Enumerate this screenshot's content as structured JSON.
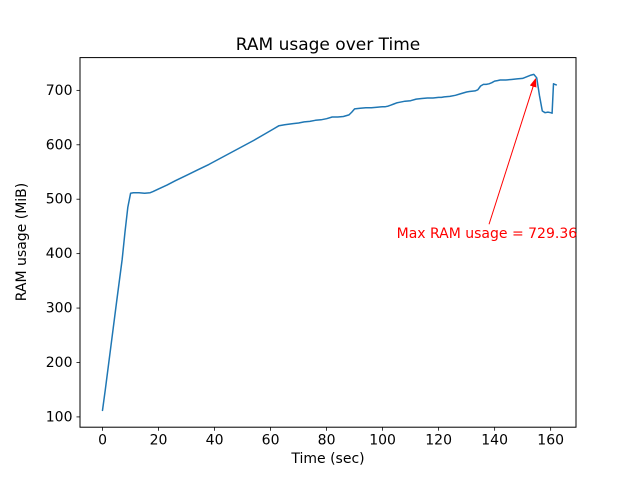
{
  "chart_data": {
    "type": "line",
    "title": "RAM usage over Time",
    "xlabel": "Time (sec)",
    "ylabel": "RAM usage (MiB)",
    "xlim": [
      -8.05,
      169.05
    ],
    "ylim": [
      81.1,
      760.2
    ],
    "xticks": [
      0,
      20,
      40,
      60,
      80,
      100,
      120,
      140,
      160
    ],
    "yticks": [
      100,
      200,
      300,
      400,
      500,
      600,
      700
    ],
    "grid": false,
    "legend": false,
    "line_color": "#1f77b4",
    "max_value": 729.36,
    "annotation": {
      "text": "Max RAM usage = 729.36",
      "color": "#ff0000",
      "point": [
        154,
        729.36
      ],
      "arrow_from": [
        138,
        454
      ],
      "arrow_to": [
        154.6,
        721
      ],
      "text_pos": [
        105,
        429
      ]
    },
    "points": [
      [
        0,
        112
      ],
      [
        1,
        150
      ],
      [
        3,
        230
      ],
      [
        5,
        310
      ],
      [
        7,
        390
      ],
      [
        8,
        440
      ],
      [
        9,
        485
      ],
      [
        10,
        511
      ],
      [
        11,
        512
      ],
      [
        13,
        512
      ],
      [
        15,
        511
      ],
      [
        17,
        512
      ],
      [
        18,
        514
      ],
      [
        20,
        519
      ],
      [
        23,
        526
      ],
      [
        26,
        534
      ],
      [
        30,
        544
      ],
      [
        34,
        554
      ],
      [
        38,
        564
      ],
      [
        42,
        575
      ],
      [
        46,
        586
      ],
      [
        50,
        597
      ],
      [
        54,
        608
      ],
      [
        58,
        620
      ],
      [
        61,
        629
      ],
      [
        63,
        635
      ],
      [
        65,
        637
      ],
      [
        68,
        639
      ],
      [
        70,
        640
      ],
      [
        72,
        642
      ],
      [
        74,
        643
      ],
      [
        76,
        645
      ],
      [
        78,
        646
      ],
      [
        80,
        648
      ],
      [
        82,
        651
      ],
      [
        84,
        651
      ],
      [
        86,
        652
      ],
      [
        88,
        655
      ],
      [
        89,
        660
      ],
      [
        90,
        666
      ],
      [
        92,
        667
      ],
      [
        94,
        668
      ],
      [
        96,
        668
      ],
      [
        98,
        669
      ],
      [
        100,
        670
      ],
      [
        101,
        670
      ],
      [
        102,
        671
      ],
      [
        103,
        673
      ],
      [
        104,
        675
      ],
      [
        105,
        677
      ],
      [
        106,
        678
      ],
      [
        108,
        680
      ],
      [
        110,
        681
      ],
      [
        112,
        684
      ],
      [
        114,
        685
      ],
      [
        116,
        686
      ],
      [
        118,
        686
      ],
      [
        120,
        687
      ],
      [
        121,
        687
      ],
      [
        122,
        688
      ],
      [
        124,
        689
      ],
      [
        126,
        691
      ],
      [
        128,
        694
      ],
      [
        130,
        697
      ],
      [
        131,
        698
      ],
      [
        133,
        699
      ],
      [
        134,
        701
      ],
      [
        135,
        708
      ],
      [
        136,
        711
      ],
      [
        137,
        711
      ],
      [
        138,
        712
      ],
      [
        139,
        714
      ],
      [
        140,
        717
      ],
      [
        141,
        718
      ],
      [
        142,
        719
      ],
      [
        144,
        719
      ],
      [
        146,
        720
      ],
      [
        148,
        721
      ],
      [
        150,
        722
      ],
      [
        151,
        724
      ],
      [
        152,
        726
      ],
      [
        153,
        728
      ],
      [
        154,
        729.36
      ],
      [
        155,
        723
      ],
      [
        156,
        690
      ],
      [
        157,
        662
      ],
      [
        158,
        659
      ],
      [
        159,
        660
      ],
      [
        160,
        659
      ],
      [
        160.5,
        658
      ],
      [
        161,
        712
      ],
      [
        162,
        710
      ]
    ]
  }
}
